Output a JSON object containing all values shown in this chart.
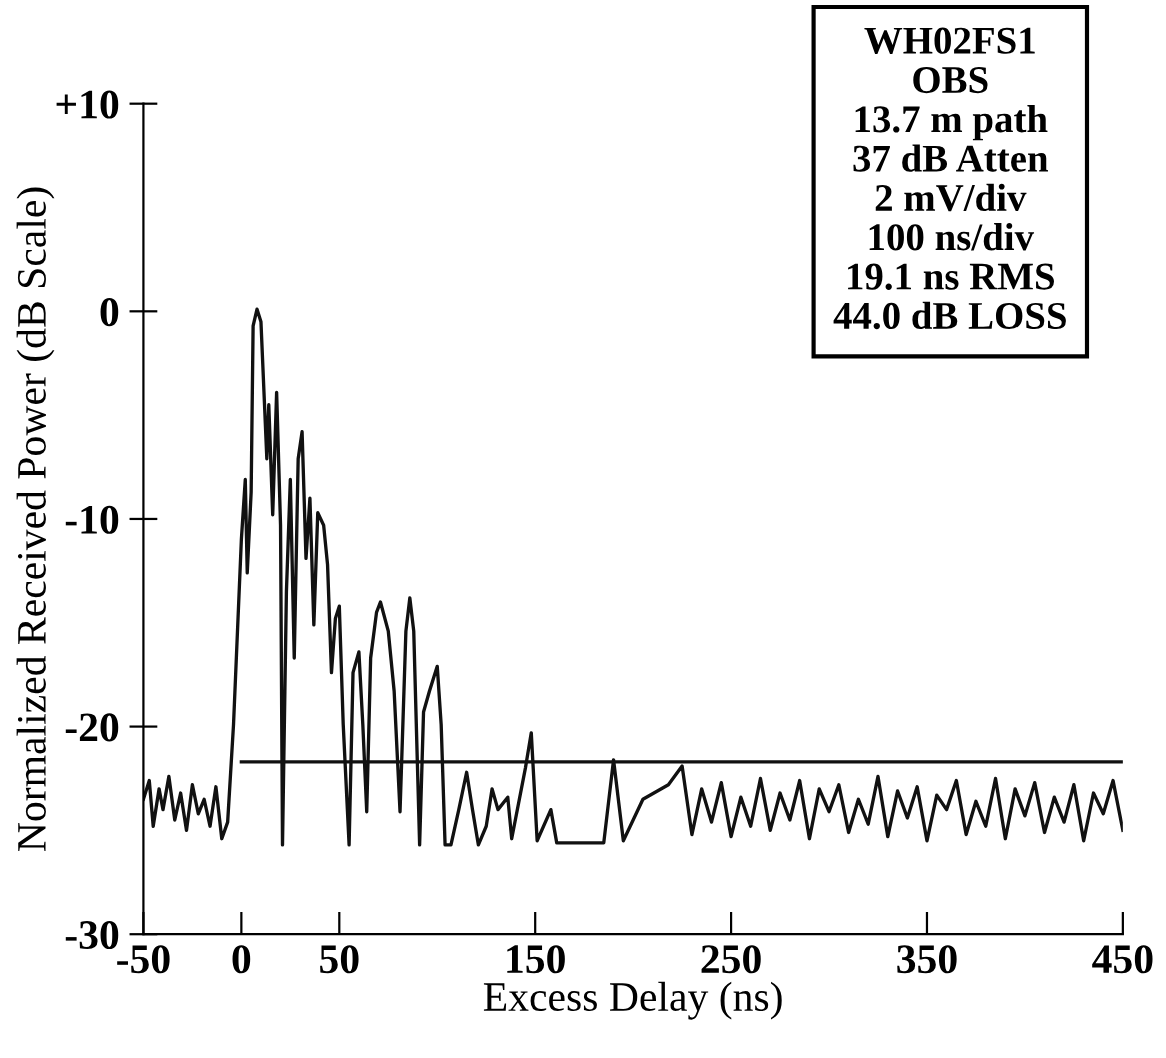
{
  "chart_data": {
    "type": "line",
    "xlabel": "Excess Delay (ns)",
    "ylabel": "Normalized Received Power (dB Scale)",
    "xlim": [
      -50,
      450
    ],
    "xticks": [
      -50,
      0,
      50,
      150,
      250,
      350,
      450
    ],
    "ylim": [
      -30,
      10
    ],
    "yticks": [
      -30,
      -20,
      -10,
      0,
      {
        "value": 10,
        "label": "+10"
      }
    ],
    "grid": false,
    "legend": false,
    "marker": "none",
    "line_style": "solid",
    "series": [
      {
        "color": "#111111",
        "x": [
          -50,
          -47,
          -45,
          -42,
          -40,
          -37,
          -34,
          -31,
          -28,
          -25,
          -22,
          -19,
          -16,
          -13,
          -10,
          -7,
          -4,
          0,
          2,
          3,
          5,
          6,
          8,
          10,
          13,
          14,
          16,
          18,
          20,
          21,
          23,
          25,
          27,
          29,
          31,
          33,
          35,
          37,
          39,
          42,
          44,
          46,
          48,
          50,
          52,
          55,
          57,
          60,
          62,
          64,
          66,
          69,
          71,
          75,
          78,
          81,
          84,
          86,
          88,
          91,
          93,
          96,
          100,
          102,
          104,
          107,
          111,
          115,
          118,
          121,
          125,
          128,
          131,
          136,
          138,
          145,
          148,
          151,
          158,
          161,
          168,
          185,
          190,
          195,
          205,
          218,
          225,
          230,
          235,
          240,
          245,
          250,
          255,
          260,
          265,
          270,
          275,
          280,
          285,
          290,
          295,
          300,
          305,
          310,
          315,
          320,
          325,
          330,
          335,
          340,
          345,
          350,
          355,
          360,
          365,
          370,
          375,
          380,
          385,
          390,
          395,
          400,
          405,
          410,
          415,
          420,
          425,
          430,
          435,
          440,
          445,
          450
        ],
        "values": [
          -23.5,
          -22.6,
          -24.8,
          -23.0,
          -24.0,
          -22.4,
          -24.5,
          -23.2,
          -25.0,
          -22.8,
          -24.2,
          -23.5,
          -24.8,
          -22.9,
          -25.4,
          -24.6,
          -19.9,
          -11.0,
          -8.1,
          -12.6,
          -8.7,
          -0.7,
          0.1,
          -0.5,
          -7.1,
          -4.5,
          -9.8,
          -3.9,
          -10.3,
          -25.7,
          -13.5,
          -8.1,
          -16.7,
          -7.1,
          -5.8,
          -11.9,
          -9.0,
          -15.1,
          -9.7,
          -10.3,
          -12.2,
          -17.4,
          -14.8,
          -14.2,
          -19.9,
          -25.7,
          -17.4,
          -16.4,
          -19.9,
          -24.1,
          -16.7,
          -14.5,
          -14.0,
          -15.4,
          -18.3,
          -24.1,
          -15.4,
          -13.8,
          -15.4,
          -25.7,
          -19.3,
          -18.3,
          -17.1,
          -19.9,
          -25.7,
          -25.7,
          -24.0,
          -22.2,
          -24.0,
          -25.7,
          -24.8,
          -23.0,
          -24.0,
          -23.4,
          -25.4,
          -22.0,
          -20.3,
          -25.5,
          -24.0,
          -25.6,
          -25.6,
          -25.6,
          -21.6,
          -25.5,
          -23.5,
          -22.8,
          -21.9,
          -25.2,
          -23.0,
          -24.6,
          -22.7,
          -25.3,
          -23.4,
          -24.8,
          -22.5,
          -25.0,
          -23.2,
          -24.5,
          -22.6,
          -25.4,
          -23.0,
          -24.1,
          -22.8,
          -25.1,
          -23.5,
          -24.7,
          -22.4,
          -25.3,
          -23.1,
          -24.4,
          -22.9,
          -25.5,
          -23.3,
          -24.0,
          -22.6,
          -25.2,
          -23.6,
          -24.8,
          -22.5,
          -25.4,
          -23.0,
          -24.3,
          -22.7,
          -25.1,
          -23.4,
          -24.6,
          -22.8,
          -25.5,
          -23.2,
          -24.2,
          -22.6,
          -25.0
        ]
      },
      {
        "color": "#111111",
        "x": [
          0,
          450
        ],
        "values": [
          -21.7,
          -21.7
        ]
      }
    ],
    "annotations": [
      "WH02FS1",
      "OBS",
      "13.7 m path",
      "37 dB Atten",
      "2 mV/div",
      "100 ns/div",
      "19.1 ns RMS",
      "44.0 dB LOSS"
    ]
  }
}
